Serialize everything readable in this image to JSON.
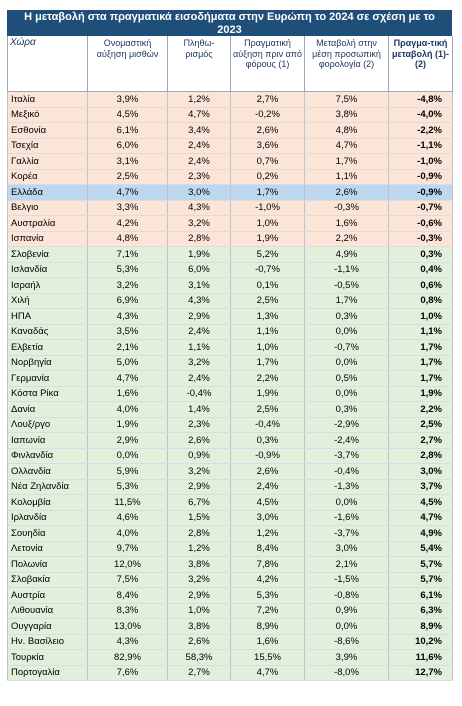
{
  "title": "Η μεταβολή στα πραγματικά εισοδήματα στην Ευρώπη το 2024 σε σχέση με το 2023",
  "headers": [
    "Χώρα",
    "Ονομαστική αύξηση μισθών",
    "Πληθω-ρισμός",
    "Πραγματική αύξηση πριν από φόρους (1)",
    "Μεταβολή στην μέση προσωπική φορολογία (2)",
    "Πραγμα-τική μεταβολή (1)-(2)"
  ],
  "rows": [
    {
      "country": "Ιταλία",
      "wage": "3,9%",
      "infl": "1,2%",
      "real": "2,7%",
      "tax": "7,5%",
      "net": "-4,8%",
      "cls": "neg"
    },
    {
      "country": "Μεξικό",
      "wage": "4,5%",
      "infl": "4,7%",
      "real": "-0,2%",
      "tax": "3,8%",
      "net": "-4,0%",
      "cls": "neg"
    },
    {
      "country": "Εσθονία",
      "wage": "6,1%",
      "infl": "3,4%",
      "real": "2,6%",
      "tax": "4,8%",
      "net": "-2,2%",
      "cls": "neg"
    },
    {
      "country": "Τσεχία",
      "wage": "6,0%",
      "infl": "2,4%",
      "real": "3,6%",
      "tax": "4,7%",
      "net": "-1,1%",
      "cls": "neg"
    },
    {
      "country": "Γαλλία",
      "wage": "3,1%",
      "infl": "2,4%",
      "real": "0,7%",
      "tax": "1,7%",
      "net": "-1,0%",
      "cls": "neg"
    },
    {
      "country": "Κορέα",
      "wage": "2,5%",
      "infl": "2,3%",
      "real": "0,2%",
      "tax": "1,1%",
      "net": "-0,9%",
      "cls": "neg"
    },
    {
      "country": "Ελλάδα",
      "wage": "4,7%",
      "infl": "3,0%",
      "real": "1,7%",
      "tax": "2,6%",
      "net": "-0,9%",
      "cls": "gr"
    },
    {
      "country": "Βελγιο",
      "wage": "3,3%",
      "infl": "4,3%",
      "real": "-1,0%",
      "tax": "-0,3%",
      "net": "-0,7%",
      "cls": "neg"
    },
    {
      "country": "Αυστραλία",
      "wage": "4,2%",
      "infl": "3,2%",
      "real": "1,0%",
      "tax": "1,6%",
      "net": "-0,6%",
      "cls": "neg"
    },
    {
      "country": "Ισπανία",
      "wage": "4,8%",
      "infl": "2,8%",
      "real": "1,9%",
      "tax": "2,2%",
      "net": "-0,3%",
      "cls": "neg"
    },
    {
      "country": "Σλοβενία",
      "wage": "7,1%",
      "infl": "1,9%",
      "real": "5,2%",
      "tax": "4,9%",
      "net": "0,3%",
      "cls": "pos"
    },
    {
      "country": "Ισλανδία",
      "wage": "5,3%",
      "infl": "6,0%",
      "real": "-0,7%",
      "tax": "-1,1%",
      "net": "0,4%",
      "cls": "pos"
    },
    {
      "country": "Ισραήλ",
      "wage": "3,2%",
      "infl": "3,1%",
      "real": "0,1%",
      "tax": "-0,5%",
      "net": "0,6%",
      "cls": "pos"
    },
    {
      "country": "Χιλή",
      "wage": "6,9%",
      "infl": "4,3%",
      "real": "2,5%",
      "tax": "1,7%",
      "net": "0,8%",
      "cls": "pos"
    },
    {
      "country": "ΗΠΑ",
      "wage": "4,3%",
      "infl": "2,9%",
      "real": "1,3%",
      "tax": "0,3%",
      "net": "1,0%",
      "cls": "pos"
    },
    {
      "country": "Καναδάς",
      "wage": "3,5%",
      "infl": "2,4%",
      "real": "1,1%",
      "tax": "0,0%",
      "net": "1,1%",
      "cls": "pos"
    },
    {
      "country": "Ελβετία",
      "wage": "2,1%",
      "infl": "1,1%",
      "real": "1,0%",
      "tax": "-0,7%",
      "net": "1,7%",
      "cls": "pos"
    },
    {
      "country": "Νορβηγία",
      "wage": "5,0%",
      "infl": "3,2%",
      "real": "1,7%",
      "tax": "0,0%",
      "net": "1,7%",
      "cls": "pos"
    },
    {
      "country": "Γερμανία",
      "wage": "4,7%",
      "infl": "2,4%",
      "real": "2,2%",
      "tax": "0,5%",
      "net": "1,7%",
      "cls": "pos"
    },
    {
      "country": "Κόστα Ρίκα",
      "wage": "1,6%",
      "infl": "-0,4%",
      "real": "1,9%",
      "tax": "0,0%",
      "net": "1,9%",
      "cls": "pos"
    },
    {
      "country": "Δανία",
      "wage": "4,0%",
      "infl": "1,4%",
      "real": "2,5%",
      "tax": "0,3%",
      "net": "2,2%",
      "cls": "pos"
    },
    {
      "country": "Λουξ/ργο",
      "wage": "1,9%",
      "infl": "2,3%",
      "real": "-0,4%",
      "tax": "-2,9%",
      "net": "2,5%",
      "cls": "pos"
    },
    {
      "country": "Ιαπωνία",
      "wage": "2,9%",
      "infl": "2,6%",
      "real": "0,3%",
      "tax": "-2,4%",
      "net": "2,7%",
      "cls": "pos"
    },
    {
      "country": "Φινλανδία",
      "wage": "0,0%",
      "infl": "0,9%",
      "real": "-0,9%",
      "tax": "-3,7%",
      "net": "2,8%",
      "cls": "pos"
    },
    {
      "country": "Ολλανδία",
      "wage": "5,9%",
      "infl": "3,2%",
      "real": "2,6%",
      "tax": "-0,4%",
      "net": "3,0%",
      "cls": "pos"
    },
    {
      "country": "Νέα Ζηλανδία",
      "wage": "5,3%",
      "infl": "2,9%",
      "real": "2,4%",
      "tax": "-1,3%",
      "net": "3,7%",
      "cls": "pos"
    },
    {
      "country": "Κολομβία",
      "wage": "11,5%",
      "infl": "6,7%",
      "real": "4,5%",
      "tax": "0,0%",
      "net": "4,5%",
      "cls": "pos"
    },
    {
      "country": "Ιρλανδία",
      "wage": "4,6%",
      "infl": "1,5%",
      "real": "3,0%",
      "tax": "-1,6%",
      "net": "4,7%",
      "cls": "pos"
    },
    {
      "country": "Σουηδία",
      "wage": "4,0%",
      "infl": "2,8%",
      "real": "1,2%",
      "tax": "-3,7%",
      "net": "4,9%",
      "cls": "pos"
    },
    {
      "country": "Λετονία",
      "wage": "9,7%",
      "infl": "1,2%",
      "real": "8,4%",
      "tax": "3,0%",
      "net": "5,4%",
      "cls": "pos"
    },
    {
      "country": "Πολωνία",
      "wage": "12,0%",
      "infl": "3,8%",
      "real": "7,8%",
      "tax": "2,1%",
      "net": "5,7%",
      "cls": "pos"
    },
    {
      "country": "Σλοβακία",
      "wage": "7,5%",
      "infl": "3,2%",
      "real": "4,2%",
      "tax": "-1,5%",
      "net": "5,7%",
      "cls": "pos"
    },
    {
      "country": "Αυστρία",
      "wage": "8,4%",
      "infl": "2,9%",
      "real": "5,3%",
      "tax": "-0,8%",
      "net": "6,1%",
      "cls": "pos"
    },
    {
      "country": "Λιθουανία",
      "wage": "8,3%",
      "infl": "1,0%",
      "real": "7,2%",
      "tax": "0,9%",
      "net": "6,3%",
      "cls": "pos"
    },
    {
      "country": "Ουγγαρία",
      "wage": "13,0%",
      "infl": "3,8%",
      "real": "8,9%",
      "tax": "0,0%",
      "net": "8,9%",
      "cls": "pos"
    },
    {
      "country": "Ην. Βασίλειο",
      "wage": "4,3%",
      "infl": "2,6%",
      "real": "1,6%",
      "tax": "-8,6%",
      "net": "10,2%",
      "cls": "pos"
    },
    {
      "country": "Τουρκία",
      "wage": "82,9%",
      "infl": "58,3%",
      "real": "15,5%",
      "tax": "3,9%",
      "net": "11,6%",
      "cls": "pos"
    },
    {
      "country": "Πορτογαλία",
      "wage": "7,6%",
      "infl": "2,7%",
      "real": "4,7%",
      "tax": "-8,0%",
      "net": "12,7%",
      "cls": "pos"
    }
  ]
}
